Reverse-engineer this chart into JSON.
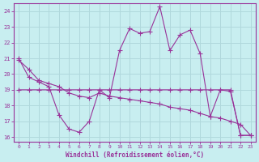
{
  "xlabel": "Windchill (Refroidissement éolien,°C)",
  "background_color": "#c8eef0",
  "grid_color": "#b0d8dc",
  "line_color": "#993399",
  "xlim": [
    -0.5,
    23.5
  ],
  "ylim": [
    15.7,
    24.5
  ],
  "yticks": [
    16,
    17,
    18,
    19,
    20,
    21,
    22,
    23,
    24
  ],
  "xticks": [
    0,
    1,
    2,
    3,
    4,
    5,
    6,
    7,
    8,
    9,
    10,
    11,
    12,
    13,
    14,
    15,
    16,
    17,
    18,
    19,
    20,
    21,
    22,
    23
  ],
  "series1_x": [
    0,
    1,
    2,
    3,
    4,
    5,
    6,
    7,
    8,
    9,
    10,
    11,
    12,
    13,
    14,
    15,
    16,
    17,
    18,
    19,
    20,
    21,
    22,
    23
  ],
  "series1_y": [
    21.0,
    19.8,
    19.5,
    19.2,
    17.4,
    16.5,
    16.3,
    17.0,
    19.0,
    18.5,
    21.5,
    22.9,
    22.6,
    22.7,
    24.3,
    21.5,
    22.5,
    22.8,
    21.3,
    17.3,
    19.0,
    18.9,
    16.1,
    16.1
  ],
  "series2_x": [
    0,
    1,
    2,
    3,
    4,
    5,
    6,
    7,
    8,
    9,
    10,
    11,
    12,
    13,
    14,
    15,
    16,
    17,
    18,
    19,
    20,
    21,
    22,
    23
  ],
  "series2_y": [
    19.0,
    19.0,
    19.0,
    19.0,
    19.0,
    19.0,
    19.0,
    19.0,
    19.0,
    19.0,
    19.0,
    19.0,
    19.0,
    19.0,
    19.0,
    19.0,
    19.0,
    19.0,
    19.0,
    19.0,
    19.0,
    19.0,
    16.1,
    16.1
  ],
  "series3_x": [
    0,
    1,
    2,
    3,
    4,
    5,
    6,
    7,
    8,
    9,
    10,
    11,
    12,
    13,
    14,
    15,
    16,
    17,
    18,
    19,
    20,
    21,
    22,
    23
  ],
  "series3_y": [
    20.9,
    20.3,
    19.6,
    19.4,
    19.2,
    18.8,
    18.6,
    18.5,
    18.8,
    18.6,
    18.5,
    18.4,
    18.3,
    18.2,
    18.1,
    17.9,
    17.8,
    17.7,
    17.5,
    17.3,
    17.2,
    17.0,
    16.8,
    16.1
  ]
}
